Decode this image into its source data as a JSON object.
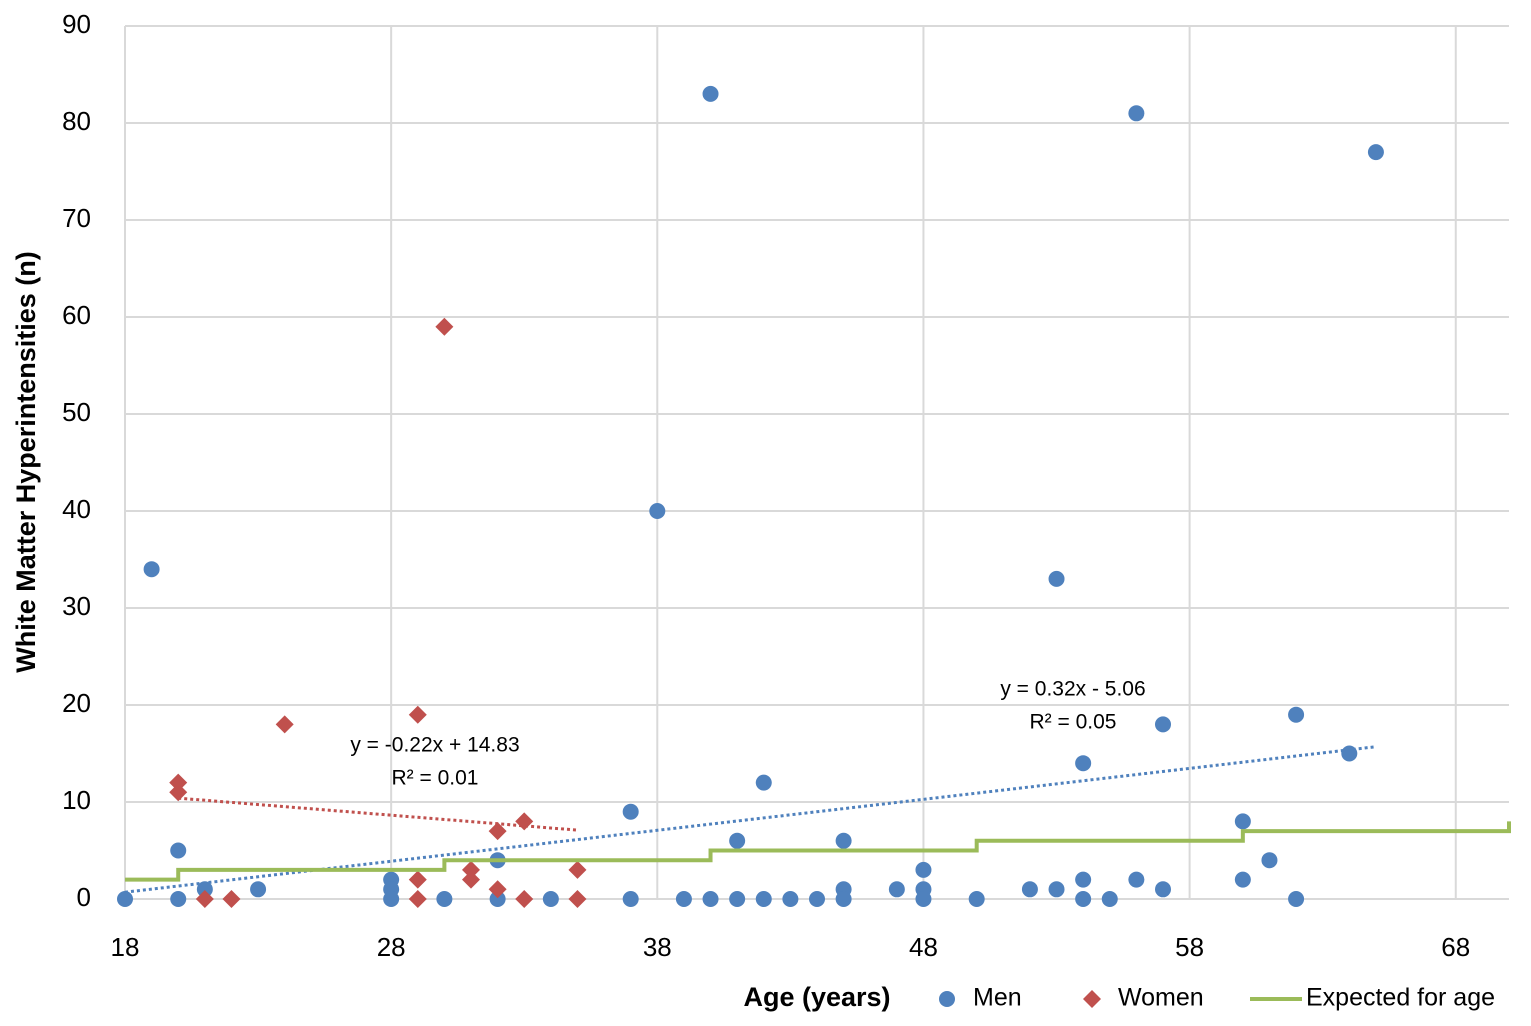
{
  "chart_data": {
    "type": "scatter",
    "x_label": "Age (years)",
    "y_label": "White Matter Hyperintensities (n)",
    "xlim": [
      18,
      70
    ],
    "ylim": [
      0,
      90
    ],
    "xticks": [
      18,
      28,
      38,
      48,
      58,
      68
    ],
    "yticks": [
      0,
      10,
      20,
      30,
      40,
      50,
      60,
      70,
      80,
      90
    ],
    "grid": true,
    "legend": "bottom",
    "series": [
      {
        "name": "Men",
        "color": "#4f81bd",
        "marker": "circle",
        "x": [
          19,
          20,
          20,
          21,
          23,
          18,
          28,
          28,
          28,
          30,
          32,
          32,
          34,
          37,
          37,
          38,
          39,
          40,
          40,
          41,
          41,
          42,
          42,
          43,
          44,
          45,
          45,
          45,
          47,
          48,
          48,
          48,
          50,
          52,
          53,
          53,
          54,
          54,
          54,
          55,
          56,
          56,
          57,
          57,
          60,
          60,
          61,
          62,
          62,
          64,
          65
        ],
        "values": [
          34,
          5,
          0,
          1,
          1,
          0,
          2,
          1,
          0,
          0,
          4,
          0,
          0,
          9,
          0,
          40,
          0,
          83,
          0,
          6,
          0,
          12,
          0,
          0,
          0,
          6,
          1,
          0,
          1,
          3,
          1,
          0,
          0,
          1,
          33,
          1,
          14,
          2,
          0,
          0,
          81,
          2,
          18,
          1,
          8,
          2,
          4,
          19,
          0,
          15,
          77
        ]
      },
      {
        "name": "Women",
        "color": "#c0504d",
        "marker": "diamond",
        "x": [
          20,
          20,
          21,
          22,
          24,
          29,
          29,
          29,
          30,
          31,
          31,
          32,
          32,
          33,
          33,
          35,
          35
        ],
        "values": [
          12,
          11,
          0,
          0,
          18,
          19,
          2,
          0,
          59,
          3,
          2,
          7,
          1,
          8,
          0,
          3,
          0
        ]
      },
      {
        "name": "Expected for age",
        "color": "#9bbb59",
        "marker": "step-line",
        "x": [
          18,
          20,
          20,
          30,
          30,
          40,
          40,
          50,
          50,
          60,
          60,
          70,
          70
        ],
        "values": [
          2,
          2,
          3,
          3,
          4,
          4,
          5,
          5,
          6,
          6,
          7,
          7,
          8
        ]
      }
    ],
    "trendlines": [
      {
        "color": "#c0504d",
        "x": [
          20,
          35
        ],
        "values": [
          10.4,
          7.1
        ],
        "equation": "y = -0.22x + 14.83",
        "r2": "R² = 0.01"
      },
      {
        "color": "#4f81bd",
        "x": [
          18,
          65
        ],
        "values": [
          0.7,
          15.7
        ],
        "equation": "y = 0.32x - 5.06",
        "r2": "R² = 0.05"
      }
    ]
  }
}
